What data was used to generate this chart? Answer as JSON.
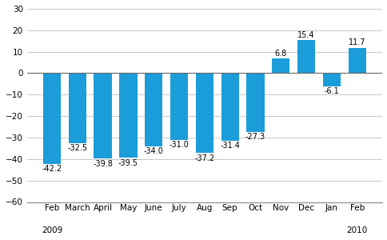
{
  "categories": [
    "Feb",
    "March",
    "April",
    "May",
    "June",
    "July",
    "Aug",
    "Sep",
    "Oct",
    "Nov",
    "Dec",
    "Jan",
    "Feb"
  ],
  "year_labels": [
    [
      "2009",
      0
    ],
    [
      "2010",
      12
    ]
  ],
  "values": [
    -42.2,
    -32.5,
    -39.8,
    -39.5,
    -34.0,
    -31.0,
    -37.2,
    -31.4,
    -27.3,
    6.8,
    15.4,
    -6.1,
    11.7
  ],
  "bar_color": "#1b9dd9",
  "ylim": [
    -60,
    30
  ],
  "yticks": [
    -60,
    -50,
    -40,
    -30,
    -20,
    -10,
    0,
    10,
    20,
    30
  ],
  "label_fontsize": 7.0,
  "tick_fontsize": 7.5,
  "year_fontsize": 7.5,
  "bar_width": 0.7,
  "grid_color": "#c8c8c8",
  "edge_color": "none"
}
